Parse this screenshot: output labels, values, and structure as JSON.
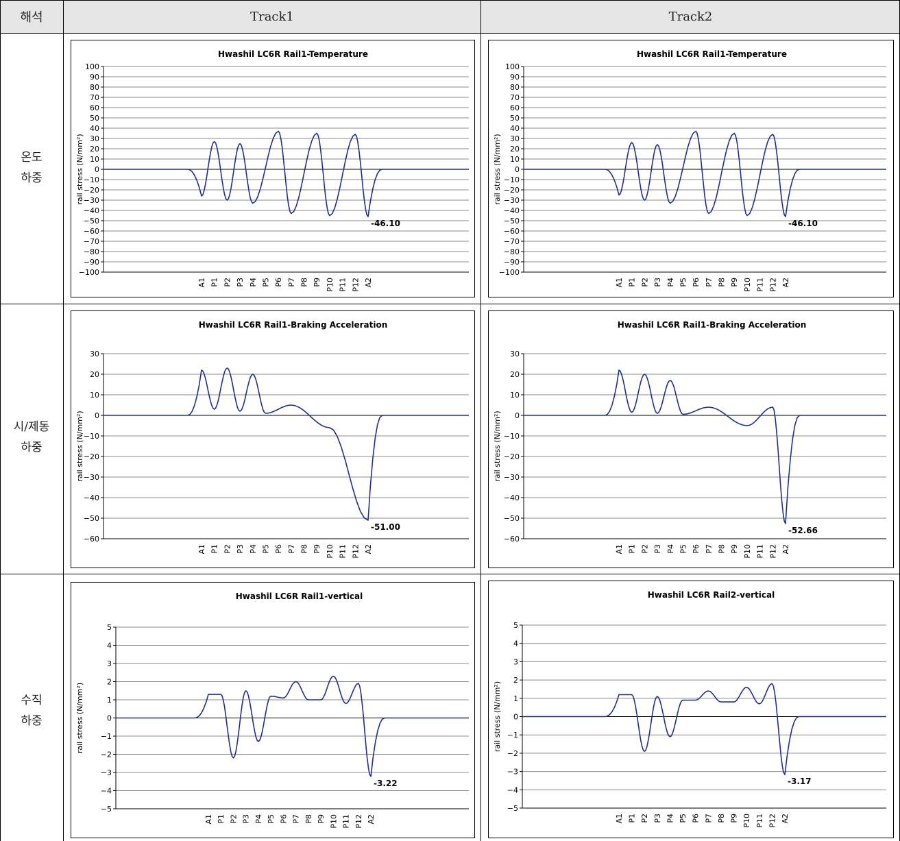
{
  "table": {
    "header": {
      "col0": "해석",
      "col1": "Track1",
      "col2": "Track2"
    },
    "rows": [
      {
        "label": [
          "온도",
          "하중"
        ]
      },
      {
        "label": [
          "시/제동",
          "하중"
        ]
      },
      {
        "label": [
          "수직",
          "하중"
        ]
      }
    ]
  },
  "chart_data": [
    {
      "type": "line",
      "title": "Hwashil LC6R Rail1-Temperature",
      "ylabel": "rail stress (N/mm²)",
      "ylim": [
        -100,
        100
      ],
      "ystep": 10,
      "gridlines": "all",
      "categories": [
        "A1",
        "P1",
        "P2",
        "P3",
        "P4",
        "P5",
        "P6",
        "P7",
        "P8",
        "P9",
        "P10",
        "P11",
        "P12",
        "A2"
      ],
      "extremes": [
        {
          "label": "A1",
          "value": -26
        },
        {
          "label": "P1",
          "value": 27
        },
        {
          "label": "P2",
          "value": -30
        },
        {
          "label": "P3",
          "value": 25
        },
        {
          "label": "P4",
          "value": -33
        },
        {
          "label": "P6",
          "value": 37
        },
        {
          "label": "P7",
          "value": -43
        },
        {
          "label": "P9",
          "value": 35
        },
        {
          "label": "P10",
          "value": -45
        },
        {
          "label": "P12",
          "value": 34
        },
        {
          "label": "A2",
          "value": -46.1
        }
      ],
      "annotation": {
        "text": "-46.10",
        "at": "A2"
      }
    },
    {
      "type": "line",
      "title": "Hwashil LC6R Rail1-Temperature",
      "ylabel": "rail stress (N/mm²)",
      "ylim": [
        -100,
        100
      ],
      "ystep": 10,
      "gridlines": "all",
      "categories": [
        "A1",
        "P1",
        "P2",
        "P3",
        "P4",
        "P5",
        "P6",
        "P7",
        "P8",
        "P9",
        "P10",
        "P11",
        "P12",
        "A2"
      ],
      "extremes": [
        {
          "label": "A1",
          "value": -25
        },
        {
          "label": "P1",
          "value": 26
        },
        {
          "label": "P2",
          "value": -30
        },
        {
          "label": "P3",
          "value": 24
        },
        {
          "label": "P4",
          "value": -33
        },
        {
          "label": "P6",
          "value": 37
        },
        {
          "label": "P7",
          "value": -43
        },
        {
          "label": "P9",
          "value": 35
        },
        {
          "label": "P10",
          "value": -45
        },
        {
          "label": "P12",
          "value": 34
        },
        {
          "label": "A2",
          "value": -46.1
        }
      ],
      "annotation": {
        "text": "-46.10",
        "at": "A2"
      }
    },
    {
      "type": "line",
      "title": "Hwashil LC6R Rail1-Braking Acceleration",
      "ylabel": "rail stress (N/mm²)",
      "ylim": [
        -60,
        30
      ],
      "ystep": 10,
      "gridlines": "all",
      "categories": [
        "A1",
        "P1",
        "P2",
        "P3",
        "P4",
        "P5",
        "P6",
        "P7",
        "P8",
        "P9",
        "P10",
        "P11",
        "P12",
        "A2"
      ],
      "extremes": [
        {
          "label": "A1",
          "value": 22
        },
        {
          "label": "P1",
          "value": 3
        },
        {
          "label": "P2",
          "value": 23
        },
        {
          "label": "P3",
          "value": 2
        },
        {
          "label": "P4",
          "value": 20
        },
        {
          "label": "P5",
          "value": 1
        },
        {
          "label": "P7",
          "value": 5
        },
        {
          "label": "P10",
          "value": -6
        },
        {
          "label": "A2",
          "value": -51
        }
      ],
      "annotation": {
        "text": "-51.00",
        "at": "A2"
      }
    },
    {
      "type": "line",
      "title": "Hwashil LC6R Rail1-Braking Acceleration",
      "ylabel": "rail stress (N/mm²)",
      "ylim": [
        -60,
        30
      ],
      "ystep": 10,
      "gridlines": "all",
      "categories": [
        "A1",
        "P1",
        "P2",
        "P3",
        "P4",
        "P5",
        "P6",
        "P7",
        "P8",
        "P9",
        "P10",
        "P11",
        "P12",
        "A2"
      ],
      "extremes": [
        {
          "label": "A1",
          "value": 22
        },
        {
          "label": "P1",
          "value": 1.5
        },
        {
          "label": "P2",
          "value": 20
        },
        {
          "label": "P3",
          "value": 1
        },
        {
          "label": "P4",
          "value": 17
        },
        {
          "label": "P5",
          "value": 0.5
        },
        {
          "label": "P7",
          "value": 4
        },
        {
          "label": "P10",
          "value": -5
        },
        {
          "label": "P12",
          "value": 4
        },
        {
          "label": "A2",
          "value": -52.66
        }
      ],
      "annotation": {
        "text": "-52.66",
        "at": "A2"
      }
    },
    {
      "type": "line",
      "title": "Hwashil LC6R Rail1-vertical",
      "ylabel": "rail stress (N/mm²)",
      "ylim": [
        -5,
        5
      ],
      "ystep": 1,
      "gridlines": "all",
      "categories": [
        "A1",
        "P1",
        "P2",
        "P3",
        "P4",
        "P5",
        "P6",
        "P7",
        "P8",
        "P9",
        "P10",
        "P11",
        "P12",
        "A2"
      ],
      "extremes": [
        {
          "label": "A1",
          "value": 1.3
        },
        {
          "label": "P1",
          "value": 1.3
        },
        {
          "label": "P2",
          "value": -2.2
        },
        {
          "label": "P3",
          "value": 1.5
        },
        {
          "label": "P4",
          "value": -1.3
        },
        {
          "label": "P5",
          "value": 1.2
        },
        {
          "label": "P6",
          "value": 1.1
        },
        {
          "label": "P7",
          "value": 2.0
        },
        {
          "label": "P8",
          "value": 1.0
        },
        {
          "label": "P9",
          "value": 1.0
        },
        {
          "label": "P10",
          "value": 2.3
        },
        {
          "label": "P11",
          "value": 0.8
        },
        {
          "label": "P12",
          "value": 1.9
        },
        {
          "label": "A2",
          "value": -3.22
        }
      ],
      "annotation": {
        "text": "-3.22",
        "at": "A2"
      }
    },
    {
      "type": "line",
      "title": "Hwashil LC6R Rail2-vertical",
      "ylabel": "rail stress (N/mm²)",
      "ylim": [
        -5,
        5
      ],
      "ystep": 1,
      "gridlines": "all",
      "categories": [
        "A1",
        "P1",
        "P2",
        "P3",
        "P4",
        "P5",
        "P6",
        "P7",
        "P8",
        "P9",
        "P10",
        "P11",
        "P12",
        "A2"
      ],
      "extremes": [
        {
          "label": "A1",
          "value": 1.2
        },
        {
          "label": "P1",
          "value": 1.2
        },
        {
          "label": "P2",
          "value": -1.9
        },
        {
          "label": "P3",
          "value": 1.1
        },
        {
          "label": "P4",
          "value": -1.1
        },
        {
          "label": "P5",
          "value": 0.9
        },
        {
          "label": "P6",
          "value": 0.9
        },
        {
          "label": "P7",
          "value": 1.4
        },
        {
          "label": "P8",
          "value": 0.8
        },
        {
          "label": "P9",
          "value": 0.8
        },
        {
          "label": "P10",
          "value": 1.6
        },
        {
          "label": "P11",
          "value": 0.7
        },
        {
          "label": "P12",
          "value": 1.8
        },
        {
          "label": "A2",
          "value": -3.17
        }
      ],
      "annotation": {
        "text": "-3.17",
        "at": "A2"
      }
    }
  ]
}
